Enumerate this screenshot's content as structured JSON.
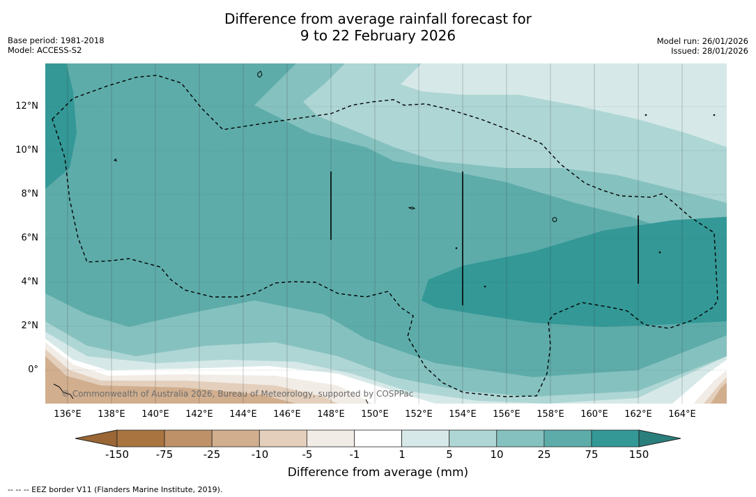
{
  "title": {
    "line1": "Difference from average rainfall forecast for",
    "line2": "9 to 22 February 2026"
  },
  "meta_left": {
    "base_period": "Base period: 1981-2018",
    "model": "Model: ACCESS-S2"
  },
  "meta_right": {
    "model_run": "Model run: 26/01/2026",
    "issued": "Issued: 28/01/2026"
  },
  "map": {
    "y_ticks": [
      "12°N",
      "10°N",
      "8°N",
      "6°N",
      "4°N",
      "2°N",
      "0°"
    ],
    "x_ticks": [
      "136°E",
      "138°E",
      "140°E",
      "142°E",
      "144°E",
      "146°E",
      "148°E",
      "150°E",
      "152°E",
      "154°E",
      "156°E",
      "158°E",
      "160°E",
      "162°E",
      "164°E"
    ],
    "watermark": "© Commonwealth of Australia 2026, Bureau of Meteorology, supported by COSPPac",
    "palette": {
      "dry_150": "#a97440",
      "dry_75": "#bf9169",
      "dry_25": "#d1ae8e",
      "dry_10": "#e3cfbc",
      "dry_5": "#f2ece6",
      "neutral": "#ffffff",
      "wet_1": "#d6e9e8",
      "wet_5": "#aed6d5",
      "wet_10": "#85c1bf",
      "wet_25": "#5dacaa",
      "wet_75": "#339896",
      "wet_150": "#2a7f7c"
    }
  },
  "colorbar": {
    "labels": [
      "-150",
      "-75",
      "-25",
      "-10",
      "-5",
      "-1",
      "1",
      "5",
      "10",
      "25",
      "75",
      "150"
    ],
    "colors": [
      "#a97440",
      "#bf9169",
      "#d1ae8e",
      "#e3cfbc",
      "#f2ece6",
      "#ffffff",
      "#d6e9e8",
      "#aed6d5",
      "#85c1bf",
      "#5dacaa",
      "#339896"
    ],
    "under_color": "#9a6635",
    "over_color": "#2a7f7c",
    "xlabel": "Difference from average (mm)"
  },
  "footer": "--  --  -- EEZ border V11 (Flanders Marine Institute, 2019)."
}
